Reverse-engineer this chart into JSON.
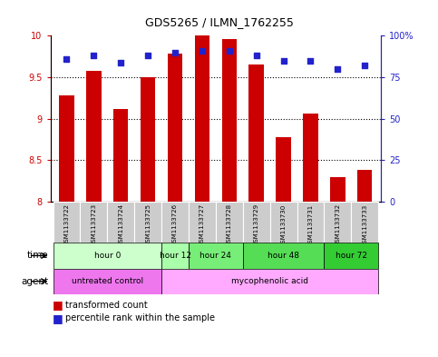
{
  "title": "GDS5265 / ILMN_1762255",
  "samples": [
    "GSM1133722",
    "GSM1133723",
    "GSM1133724",
    "GSM1133725",
    "GSM1133726",
    "GSM1133727",
    "GSM1133728",
    "GSM1133729",
    "GSM1133730",
    "GSM1133731",
    "GSM1133732",
    "GSM1133733"
  ],
  "bar_values": [
    9.28,
    9.58,
    9.12,
    9.5,
    9.78,
    10.0,
    9.96,
    9.65,
    8.78,
    9.06,
    8.3,
    8.38
  ],
  "percentile_values": [
    86,
    88,
    84,
    88,
    90,
    91,
    91,
    88,
    85,
    85,
    80,
    82
  ],
  "bar_color": "#cc0000",
  "dot_color": "#2222cc",
  "ylim_left": [
    8.0,
    10.0
  ],
  "ylim_right": [
    0,
    100
  ],
  "yticks_left": [
    8.0,
    8.5,
    9.0,
    9.5,
    10.0
  ],
  "yticks_right": [
    0,
    25,
    50,
    75,
    100
  ],
  "right_tick_labels": [
    "0",
    "25",
    "50",
    "75",
    "100%"
  ],
  "time_groups": [
    {
      "label": "hour 0",
      "start": 0,
      "end": 4,
      "color": "#ccffcc"
    },
    {
      "label": "hour 12",
      "start": 4,
      "end": 5,
      "color": "#aaffaa"
    },
    {
      "label": "hour 24",
      "start": 5,
      "end": 7,
      "color": "#77ee77"
    },
    {
      "label": "hour 48",
      "start": 7,
      "end": 10,
      "color": "#55dd55"
    },
    {
      "label": "hour 72",
      "start": 10,
      "end": 12,
      "color": "#33cc33"
    }
  ],
  "agent_groups": [
    {
      "label": "untreated control",
      "start": 0,
      "end": 4,
      "color": "#ee77ee"
    },
    {
      "label": "mycophenolic acid",
      "start": 4,
      "end": 12,
      "color": "#ffaaff"
    }
  ],
  "legend_bar_label": "transformed count",
  "legend_dot_label": "percentile rank within the sample",
  "bar_width": 0.55,
  "sample_box_color": "#cccccc",
  "background_color": "#ffffff"
}
